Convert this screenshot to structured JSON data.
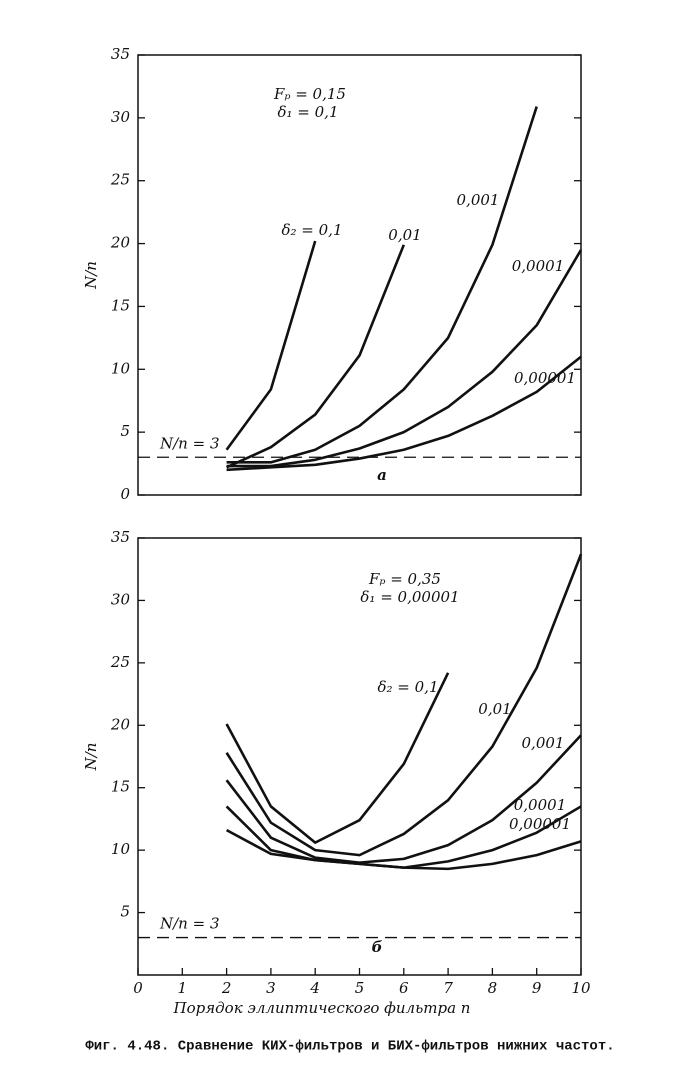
{
  "chart_data": [
    {
      "type": "line",
      "ylabel": "N/n",
      "xlim": [
        0,
        10
      ],
      "ylim": [
        0,
        35
      ],
      "yticks": [
        0,
        5,
        10,
        15,
        20,
        25,
        30,
        35
      ],
      "annotations": [
        "Fₚ = 0,15",
        "δ₁ = 0,1",
        "а"
      ],
      "reference": {
        "value": 3,
        "label": "N/n = 3"
      },
      "series": [
        {
          "name": "δ₂ = 0,1",
          "color": "#111111",
          "x": [
            2,
            3,
            4
          ],
          "values": [
            3.6,
            8.4,
            20.2
          ]
        },
        {
          "name": "0,01",
          "color": "#111111",
          "x": [
            2,
            3,
            4,
            5,
            6
          ],
          "values": [
            2.2,
            3.8,
            6.4,
            11.1,
            19.9
          ]
        },
        {
          "name": "0,001",
          "color": "#111111",
          "x": [
            2,
            3,
            4,
            5,
            6,
            7,
            8,
            9
          ],
          "values": [
            2.6,
            2.6,
            3.6,
            5.5,
            8.4,
            12.5,
            19.9,
            30.9
          ]
        },
        {
          "name": "0,0001",
          "color": "#111111",
          "x": [
            2,
            3,
            4,
            5,
            6,
            7,
            8,
            9,
            10
          ],
          "values": [
            2.3,
            2.3,
            2.8,
            3.7,
            5.0,
            7.0,
            9.8,
            13.5,
            19.5
          ]
        },
        {
          "name": "0,00001",
          "color": "#111111",
          "x": [
            2,
            3,
            4,
            5,
            6,
            7,
            8,
            9,
            10
          ],
          "values": [
            2.0,
            2.2,
            2.4,
            2.9,
            3.6,
            4.7,
            6.3,
            8.2,
            11.0
          ]
        }
      ]
    },
    {
      "type": "line",
      "ylabel": "N/n",
      "xlabel": "Порядок эллиптического фильтра n",
      "xlim": [
        0,
        10
      ],
      "ylim": [
        0,
        35
      ],
      "xticks": [
        0,
        1,
        2,
        3,
        4,
        5,
        6,
        7,
        8,
        9,
        10
      ],
      "yticks": [
        5,
        10,
        15,
        20,
        25,
        30,
        35
      ],
      "annotations": [
        "Fₚ = 0,35",
        "δ₁ = 0,00001",
        "б"
      ],
      "reference": {
        "value": 3,
        "label": "N/n = 3"
      },
      "series": [
        {
          "name": "δ₂ = 0,1",
          "color": "#111111",
          "x": [
            2,
            3,
            4,
            5,
            6,
            7
          ],
          "values": [
            20.1,
            13.5,
            10.6,
            12.4,
            16.9,
            24.2
          ]
        },
        {
          "name": "0,01",
          "color": "#111111",
          "x": [
            2,
            3,
            4,
            5,
            6,
            7,
            8,
            9,
            10
          ],
          "values": [
            17.8,
            12.2,
            10.0,
            9.6,
            11.3,
            14.0,
            18.3,
            24.6,
            33.7
          ]
        },
        {
          "name": "0,001",
          "color": "#111111",
          "x": [
            2,
            3,
            4,
            5,
            6,
            7,
            8,
            9,
            10
          ],
          "values": [
            15.6,
            11.0,
            9.4,
            9.0,
            9.3,
            10.4,
            12.4,
            15.4,
            19.2
          ]
        },
        {
          "name": "0,0001",
          "color": "#111111",
          "x": [
            2,
            3,
            4,
            5,
            6,
            7,
            8,
            9,
            10
          ],
          "values": [
            13.5,
            10.0,
            9.2,
            8.9,
            8.6,
            9.1,
            10.0,
            11.4,
            13.5
          ]
        },
        {
          "name": "0,00001",
          "color": "#111111",
          "x": [
            2,
            3,
            4,
            5,
            6,
            7,
            8,
            9,
            10
          ],
          "values": [
            11.6,
            9.7,
            9.2,
            8.9,
            8.6,
            8.5,
            8.9,
            9.6,
            10.7
          ]
        }
      ]
    }
  ],
  "caption": "Фиг. 4.48. Сравнение КИХ-фильтров и БИХ-фильтров нижних частот."
}
